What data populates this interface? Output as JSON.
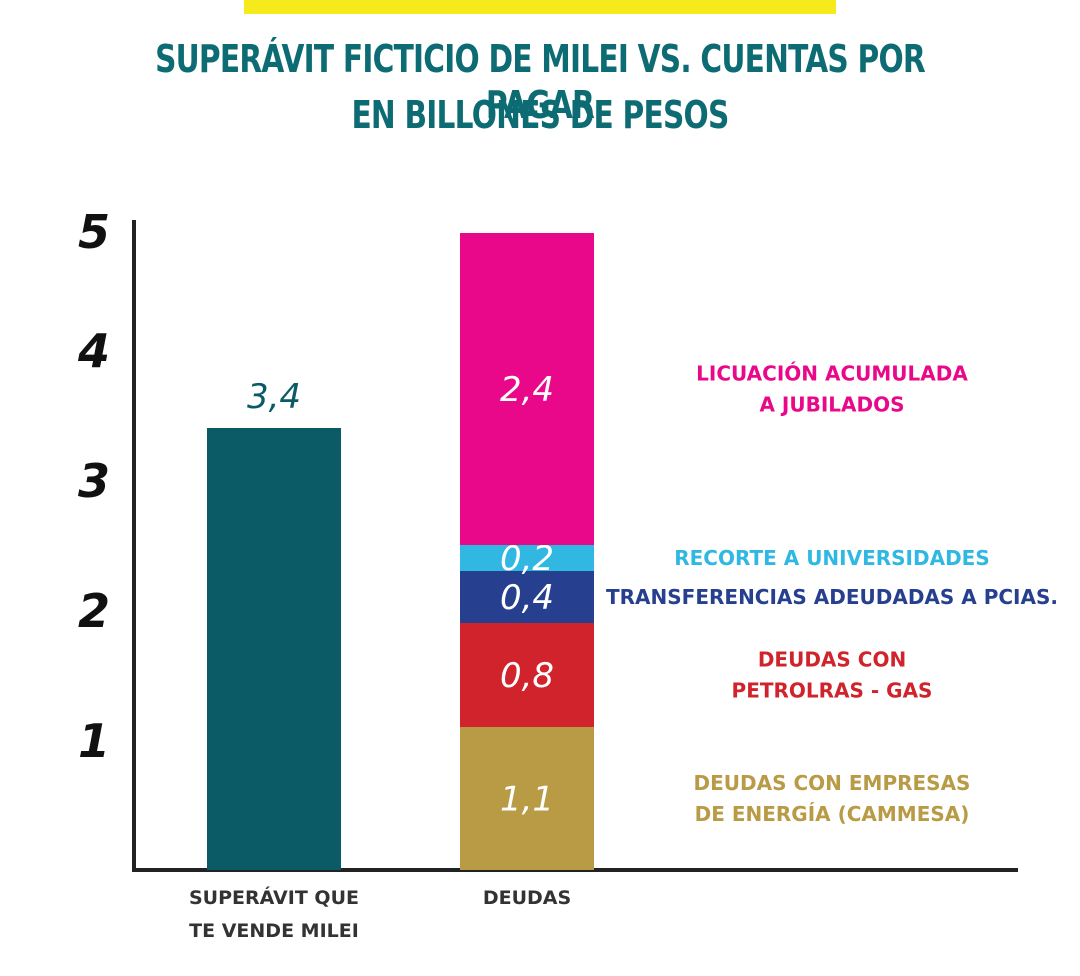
{
  "title_line1": "SUPERÁVIT FICTICIO DE MILEI VS. CUENTAS POR PAGAR",
  "title_line2": "EN BILLONES DE PESOS",
  "colors": {
    "title": "#0d6b73",
    "top_band": "#f7ea1c",
    "superavit": "#0a5b66",
    "energia": "#b99a45",
    "petroleras": "#d0232b",
    "provincias": "#263f8e",
    "universidades": "#30b8e3",
    "jubilados": "#e9088a"
  },
  "chart_data": {
    "type": "bar",
    "stacked": true,
    "title": "SUPERÁVIT FICTICIO DE MILEI VS. CUENTAS POR PAGAR",
    "subtitle": "EN BILLONES DE PESOS",
    "ylim": [
      0,
      5
    ],
    "yticks": [
      "1",
      "2",
      "3",
      "4",
      "5"
    ],
    "grid": false,
    "categories": [
      [
        "SUPERÁVIT QUE",
        "TE VENDE MILEI"
      ],
      [
        "DEUDAS"
      ]
    ],
    "bars": [
      {
        "category_index": 0,
        "segments": [
          {
            "value": 3.4,
            "label": "3,4",
            "color": "#0a5b66",
            "label_color": "#0a5b66",
            "label_outside": true
          }
        ]
      },
      {
        "category_index": 1,
        "segments": [
          {
            "value": 1.1,
            "label": "1,1",
            "color": "#b99a45",
            "label_color": "#ffffff",
            "annotation": [
              "DEUDAS CON EMPRESAS",
              "DE ENERGÍA (CAMMESA)"
            ],
            "annotation_color": "#b99a45"
          },
          {
            "value": 0.8,
            "label": "0,8",
            "color": "#d0232b",
            "label_color": "#ffffff",
            "annotation": [
              "DEUDAS CON",
              "PETROLRAS - GAS"
            ],
            "annotation_color": "#d0232b"
          },
          {
            "value": 0.4,
            "label": "0,4",
            "color": "#263f8e",
            "label_color": "#ffffff",
            "annotation": [
              "TRANSFERENCIAS ADEUDADAS A PCIAS."
            ],
            "annotation_color": "#263f8e"
          },
          {
            "value": 0.2,
            "label": "0,2",
            "color": "#30b8e3",
            "label_color": "#ffffff",
            "annotation": [
              "RECORTE A UNIVERSIDADES"
            ],
            "annotation_color": "#30b8e3"
          },
          {
            "value": 2.4,
            "label": "2,4",
            "color": "#e9088a",
            "label_color": "#ffffff",
            "annotation": [
              "LICUACIÓN ACUMULADA",
              "A JUBILADOS"
            ],
            "annotation_color": "#e9088a"
          }
        ]
      }
    ]
  }
}
